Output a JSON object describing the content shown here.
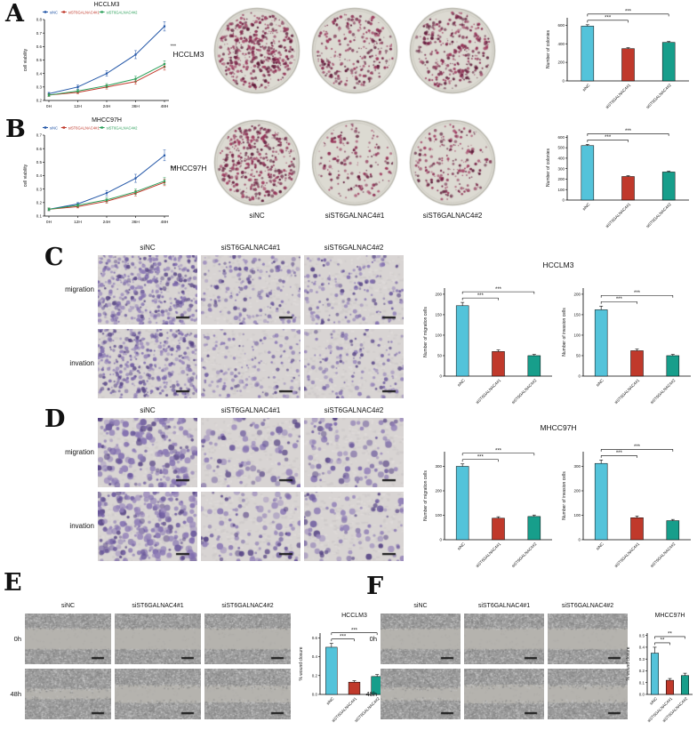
{
  "panels": {
    "A": "A",
    "B": "B",
    "C": "C",
    "D": "D",
    "E": "E",
    "F": "F"
  },
  "treatments": [
    "siNC",
    "siST6GALNAC4#1",
    "siST6GALNAC4#2"
  ],
  "cell_lines": {
    "hcclm3": "HCCLM3",
    "mhcc97h": "MHCC97H"
  },
  "row_labels": {
    "migration": "migration",
    "invasion": "invation",
    "t0": "0h",
    "t48": "48h"
  },
  "group_titles": {
    "c": "HCCLM3",
    "d": "MHCC97H"
  },
  "bar_colors": [
    "#54c3da",
    "#c0392b",
    "#179e8b"
  ],
  "chart_data": [
    {
      "id": "cck8_hcclm3",
      "type": "line",
      "title": "HCCLM3",
      "x": [
        "0H",
        "12H",
        "24H",
        "36H",
        "48H"
      ],
      "ylabel": "cell viability",
      "ylim": [
        0.2,
        0.8
      ],
      "yticks": [
        0.2,
        0.3,
        0.4,
        0.5,
        0.6,
        0.7,
        0.8
      ],
      "annotation": "***",
      "legend": "top",
      "series": [
        {
          "name": "siNC",
          "color": "#2457a8",
          "values": [
            0.25,
            0.3,
            0.4,
            0.54,
            0.75
          ],
          "errors": [
            0.01,
            0.015,
            0.02,
            0.03,
            0.035
          ]
        },
        {
          "name": "siST6GALNAC4#1",
          "color": "#c0392b",
          "values": [
            0.24,
            0.26,
            0.3,
            0.34,
            0.45
          ],
          "errors": [
            0.01,
            0.01,
            0.015,
            0.02,
            0.025
          ]
        },
        {
          "name": "siST6GALNAC4#2",
          "color": "#2ca05a",
          "values": [
            0.24,
            0.27,
            0.31,
            0.36,
            0.47
          ],
          "errors": [
            0.01,
            0.01,
            0.015,
            0.02,
            0.025
          ]
        }
      ]
    },
    {
      "id": "cck8_mhcc97h",
      "type": "line",
      "title": "MHCC97H",
      "x": [
        "0H",
        "12H",
        "24H",
        "36H",
        "48H"
      ],
      "ylabel": "cell viability",
      "ylim": [
        0.1,
        0.7
      ],
      "yticks": [
        0.1,
        0.2,
        0.3,
        0.4,
        0.5,
        0.6,
        0.7
      ],
      "annotation": "***",
      "legend": "top",
      "series": [
        {
          "name": "siNC",
          "color": "#2457a8",
          "values": [
            0.15,
            0.19,
            0.27,
            0.38,
            0.55
          ],
          "errors": [
            0.01,
            0.01,
            0.02,
            0.03,
            0.04
          ]
        },
        {
          "name": "siST6GALNAC4#1",
          "color": "#c0392b",
          "values": [
            0.15,
            0.17,
            0.21,
            0.27,
            0.35
          ],
          "errors": [
            0.01,
            0.01,
            0.015,
            0.02,
            0.025
          ]
        },
        {
          "name": "siST6GALNAC4#2",
          "color": "#2ca05a",
          "values": [
            0.15,
            0.18,
            0.22,
            0.28,
            0.36
          ],
          "errors": [
            0.01,
            0.01,
            0.015,
            0.02,
            0.025
          ]
        }
      ]
    },
    {
      "id": "colonies_hcclm3",
      "type": "bar",
      "ylabel": "Number of colonies",
      "categories": [
        "siNC",
        "siST6GALNAC4#1",
        "siST6GALNAC4#2"
      ],
      "values": [
        590,
        348,
        415
      ],
      "errors": [
        15,
        10,
        10
      ],
      "ylim": [
        0,
        680
      ],
      "yticks": [
        0,
        200,
        400,
        600
      ],
      "sig": [
        {
          "a": 0,
          "b": 1,
          "stars": "***"
        },
        {
          "a": 0,
          "b": 2,
          "stars": "***"
        }
      ]
    },
    {
      "id": "colonies_mhcc97h",
      "type": "bar",
      "ylabel": "Number of colonies",
      "categories": [
        "siNC",
        "siST6GALNAC4#1",
        "siST6GALNAC4#2"
      ],
      "values": [
        520,
        225,
        268
      ],
      "errors": [
        12,
        8,
        8
      ],
      "ylim": [
        0,
        620
      ],
      "yticks": [
        0,
        100,
        200,
        300,
        400,
        500,
        600
      ],
      "sig": [
        {
          "a": 0,
          "b": 1,
          "stars": "***"
        },
        {
          "a": 0,
          "b": 2,
          "stars": "***"
        }
      ]
    },
    {
      "id": "migration_hcclm3",
      "type": "bar",
      "ylabel": "Number of migration cells",
      "categories": [
        "siNC",
        "siST6GALNAC4#1",
        "siST6GALNAC4#2"
      ],
      "values": [
        172,
        60,
        50
      ],
      "errors": [
        8,
        4,
        3
      ],
      "ylim": [
        0,
        215
      ],
      "yticks": [
        0,
        50,
        100,
        150,
        200
      ],
      "sig": [
        {
          "a": 0,
          "b": 1,
          "stars": "***"
        },
        {
          "a": 0,
          "b": 2,
          "stars": "***"
        }
      ]
    },
    {
      "id": "invasion_hcclm3",
      "type": "bar",
      "ylabel": "Number of invasion cells",
      "categories": [
        "siNC",
        "siST6GALNAC4#1",
        "siST6GALNAC4#2"
      ],
      "values": [
        162,
        62,
        50
      ],
      "errors": [
        9,
        4,
        3
      ],
      "ylim": [
        0,
        215
      ],
      "yticks": [
        0,
        50,
        100,
        150,
        200
      ],
      "sig": [
        {
          "a": 0,
          "b": 1,
          "stars": "***"
        },
        {
          "a": 0,
          "b": 2,
          "stars": "***"
        }
      ]
    },
    {
      "id": "migration_mhcc97h",
      "type": "bar",
      "ylabel": "Number of migration cells",
      "categories": [
        "siNC",
        "siST6GALNAC4#1",
        "siST6GALNAC4#2"
      ],
      "values": [
        300,
        88,
        95
      ],
      "errors": [
        10,
        6,
        6
      ],
      "ylim": [
        0,
        360
      ],
      "yticks": [
        0,
        100,
        200,
        300
      ],
      "sig": [
        {
          "a": 0,
          "b": 1,
          "stars": "***"
        },
        {
          "a": 0,
          "b": 2,
          "stars": "***"
        }
      ]
    },
    {
      "id": "invasion_mhcc97h",
      "type": "bar",
      "ylabel": "Number of invasion cells",
      "categories": [
        "siNC",
        "siST6GALNAC4#1",
        "siST6GALNAC4#2"
      ],
      "values": [
        312,
        90,
        78
      ],
      "errors": [
        14,
        7,
        5
      ],
      "ylim": [
        0,
        360
      ],
      "yticks": [
        0,
        100,
        200,
        300
      ],
      "sig": [
        {
          "a": 0,
          "b": 1,
          "stars": "***"
        },
        {
          "a": 0,
          "b": 2,
          "stars": "***"
        }
      ]
    },
    {
      "id": "wound_hcclm3",
      "type": "bar",
      "title": "HCCLM3",
      "ylabel": "% wound closure",
      "categories": [
        "siNC",
        "siST6GALNAC4#1",
        "siST6GALNAC4#2"
      ],
      "values": [
        0.5,
        0.13,
        0.19
      ],
      "errors": [
        0.04,
        0.015,
        0.02
      ],
      "ylim": [
        0,
        0.65
      ],
      "yticks": [
        0,
        0.2,
        0.4,
        0.6
      ],
      "sig": [
        {
          "a": 0,
          "b": 1,
          "stars": "***"
        },
        {
          "a": 0,
          "b": 2,
          "stars": "***"
        }
      ]
    },
    {
      "id": "wound_mhcc97h",
      "type": "bar",
      "title": "MHCC97H",
      "ylabel": "% wound closure",
      "categories": [
        "siNC",
        "siST6GALNAC4#1",
        "siST6GALNAC4#2"
      ],
      "values": [
        0.35,
        0.12,
        0.16
      ],
      "errors": [
        0.05,
        0.015,
        0.02
      ],
      "ylim": [
        0,
        0.52
      ],
      "yticks": [
        0,
        0.1,
        0.2,
        0.3,
        0.4,
        0.5
      ],
      "sig": [
        {
          "a": 0,
          "b": 1,
          "stars": "**"
        },
        {
          "a": 0,
          "b": 2,
          "stars": "**"
        }
      ]
    }
  ],
  "textures": {
    "colony_a": {
      "kind": "colony",
      "dots": [
        470,
        280,
        330
      ],
      "seed": 7
    },
    "colony_b": {
      "kind": "colony",
      "dots": [
        410,
        175,
        210
      ],
      "seed": 11
    },
    "cells_c": {
      "kind": "cells",
      "rows": [
        [
          430,
          180,
          160
        ],
        [
          390,
          150,
          135
        ]
      ],
      "blob": 1.7,
      "seed": 3
    },
    "cells_d": {
      "kind": "cells",
      "rows": [
        [
          210,
          90,
          95
        ],
        [
          250,
          100,
          88
        ]
      ],
      "blob": 2.6,
      "seed": 5
    },
    "wound_e": {
      "kind": "wound",
      "gap0": 0.42,
      "gap48": [
        0.21,
        0.36,
        0.34
      ],
      "seed": 9
    },
    "wound_f": {
      "kind": "wound",
      "gap0": 0.42,
      "gap48": [
        0.27,
        0.37,
        0.35
      ],
      "seed": 13
    }
  }
}
